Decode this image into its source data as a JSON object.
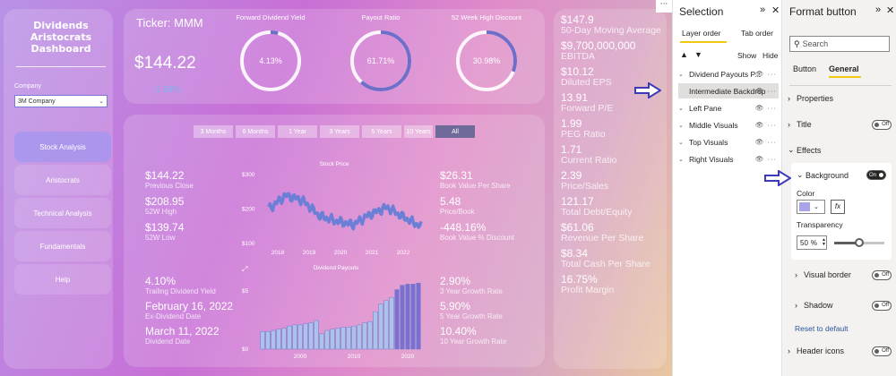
{
  "dashboard": {
    "title": "Dividends Aristocrats Dashboard",
    "company_label": "Company",
    "company_value": "3M Company",
    "nav": [
      "Stock Analysis",
      "Aristocrats",
      "Technical Analysis",
      "Fundamentals",
      "Help"
    ],
    "ticker": "Ticker: MMM",
    "price": "$144.22",
    "change": "-1.98%",
    "kpis": [
      {
        "title": "Forward Dividend Yield",
        "value": "4.13%",
        "fraction": 0.0413
      },
      {
        "title": "Payout Ratio",
        "value": "61.71%",
        "fraction": 0.6171
      },
      {
        "title": "52 Week High Discount",
        "value": "30.98%",
        "fraction": 0.3098
      }
    ],
    "tabs": [
      "3 Months",
      "6 Months",
      "1 Year",
      "3 Years",
      "5 Years",
      "10 Years",
      "All"
    ],
    "left_stats": [
      {
        "value": "$144.22",
        "label": "Previous Close"
      },
      {
        "value": "$208.95",
        "label": "52W High"
      },
      {
        "value": "$139.74",
        "label": "52W Low"
      }
    ],
    "mid_stats": [
      {
        "value": "$26.31",
        "label": "Book Value Per Share"
      },
      {
        "value": "5.48",
        "label": "Price/Book"
      },
      {
        "value": "-448.16%",
        "label": "Book Value % Discount"
      }
    ],
    "div_left_stats": [
      {
        "value": "4.10%",
        "label": "Trailing Dividend Yield"
      },
      {
        "value": "February 16, 2022",
        "label": "Ex-Dividend Date"
      },
      {
        "value": "March 11, 2022",
        "label": "Dividend Date"
      }
    ],
    "div_mid_stats": [
      {
        "value": "2.90%",
        "label": "3 Year Growth Rate"
      },
      {
        "value": "5.90%",
        "label": "5 Year Growth Rate"
      },
      {
        "value": "10.40%",
        "label": "10 Year Growth Rate"
      }
    ],
    "right_stats": [
      {
        "value": "$147.9",
        "label": "50-Day Moving Average"
      },
      {
        "value": "$9,700,000,000",
        "label": "EBITDA"
      },
      {
        "value": "$10.12",
        "label": "Diluted EPS"
      },
      {
        "value": "13.91",
        "label": "Forward P/E"
      },
      {
        "value": "1.99",
        "label": "PEG Ratio"
      },
      {
        "value": "1.71",
        "label": "Current Ratio"
      },
      {
        "value": "2.39",
        "label": "Price/Sales"
      },
      {
        "value": "121.17",
        "label": "Total Debt/Equity"
      },
      {
        "value": "$61.06",
        "label": "Revenue Per Share"
      },
      {
        "value": "$8.34",
        "label": "Total Cash Per Share"
      },
      {
        "value": "16.75%",
        "label": "Profit Margin"
      }
    ]
  },
  "chart_data": [
    {
      "type": "line",
      "title": "Stock Price",
      "x": [
        "2018",
        "2018.5",
        "2019",
        "2019.5",
        "2020",
        "2020.5",
        "2021",
        "2021.5",
        "2022",
        "2022.2"
      ],
      "values": [
        200,
        240,
        225,
        180,
        165,
        155,
        185,
        205,
        175,
        150
      ],
      "xticks": [
        "2018",
        "2019",
        "2020",
        "2021",
        "2022"
      ],
      "yticks": [
        "$300",
        "$200",
        "$100"
      ],
      "ylim": [
        100,
        300
      ]
    },
    {
      "type": "bar",
      "title": "Dividend Payouts",
      "categories": [
        "1993",
        "1994",
        "1995",
        "1996",
        "1997",
        "1998",
        "1999",
        "2000",
        "2001",
        "2002",
        "2003",
        "2004",
        "2005",
        "2006",
        "2007",
        "2008",
        "2009",
        "2010",
        "2011",
        "2012",
        "2013",
        "2014",
        "2015",
        "2016",
        "2017",
        "2018",
        "2019",
        "2020",
        "2021",
        "2022"
      ],
      "values": [
        1.6,
        1.6,
        1.7,
        1.8,
        1.9,
        2.1,
        2.2,
        2.2,
        2.3,
        2.4,
        2.6,
        1.4,
        1.7,
        1.8,
        1.9,
        2.0,
        2.0,
        2.1,
        2.2,
        2.4,
        2.5,
        3.4,
        4.1,
        4.4,
        4.7,
        5.4,
        5.8,
        5.9,
        5.9,
        6.0
      ],
      "xticks": [
        "2000",
        "2010",
        "2020"
      ],
      "yticks": [
        "$5",
        "$0"
      ],
      "ylim": [
        0,
        6.5
      ]
    }
  ],
  "selection": {
    "title": "Selection",
    "tabs": [
      "Layer order",
      "Tab order"
    ],
    "show": "Show",
    "hide": "Hide",
    "layers": [
      "Dividend Payouts P...",
      "Intermediate Backdrop",
      "Left Pane",
      "Middle Visuals",
      "Top Visuals",
      "Right Visuals"
    ]
  },
  "format": {
    "title": "Format button",
    "search_placeholder": "Search",
    "tabs": [
      "Button",
      "General"
    ],
    "properties": "Properties",
    "title_section": "Title",
    "effects": "Effects",
    "background": "Background",
    "color": "Color",
    "transparency": "Transparency",
    "transparency_value": "50",
    "transparency_unit": "%",
    "transparency_fraction": 0.5,
    "visual_border": "Visual border",
    "shadow": "Shadow",
    "reset": "Reset to default",
    "header_icons": "Header icons",
    "on": "On",
    "off": "Off",
    "fx": "fx",
    "accent": "#a9a4e8"
  }
}
